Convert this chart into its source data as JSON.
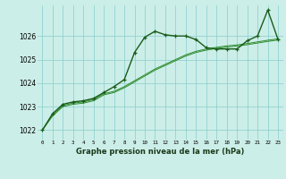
{
  "title": "Graphe pression niveau de la mer (hPa)",
  "bg_color": "#cceee8",
  "grid_color": "#88cccc",
  "line_color_main": "#1a5c1a",
  "line_color_thin": "#2d8b2d",
  "x_ticks": [
    0,
    1,
    2,
    3,
    4,
    5,
    6,
    7,
    8,
    9,
    10,
    11,
    12,
    13,
    14,
    15,
    16,
    17,
    18,
    19,
    20,
    21,
    22,
    23
  ],
  "ylim": [
    1021.6,
    1027.3
  ],
  "yticks": [
    1022,
    1023,
    1024,
    1025,
    1026
  ],
  "series1": [
    1022.0,
    1022.7,
    1023.1,
    1023.2,
    1023.25,
    1023.35,
    1023.6,
    1023.85,
    1024.15,
    1025.3,
    1025.95,
    1026.2,
    1026.05,
    1026.0,
    1026.0,
    1025.85,
    1025.5,
    1025.45,
    1025.45,
    1025.45,
    1025.8,
    1026.0,
    1027.1,
    1025.85
  ],
  "series2": [
    1022.0,
    1022.65,
    1023.05,
    1023.15,
    1023.2,
    1023.3,
    1023.55,
    1023.65,
    1023.85,
    1024.1,
    1024.35,
    1024.6,
    1024.8,
    1025.0,
    1025.2,
    1025.35,
    1025.45,
    1025.52,
    1025.58,
    1025.62,
    1025.68,
    1025.75,
    1025.82,
    1025.88
  ],
  "series3": [
    1022.0,
    1022.6,
    1023.0,
    1023.1,
    1023.15,
    1023.25,
    1023.5,
    1023.6,
    1023.8,
    1024.05,
    1024.3,
    1024.55,
    1024.75,
    1024.95,
    1025.15,
    1025.3,
    1025.4,
    1025.47,
    1025.53,
    1025.57,
    1025.63,
    1025.7,
    1025.77,
    1025.83
  ]
}
